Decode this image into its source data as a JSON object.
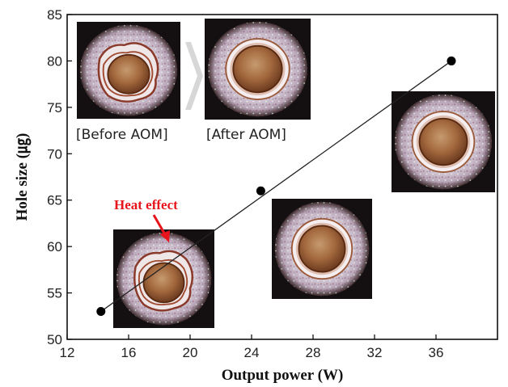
{
  "chart_data": {
    "type": "scatter",
    "title": "",
    "xlabel": "Output power (W)",
    "ylabel": "Hole size (㎍)",
    "xlim": [
      12,
      40
    ],
    "ylim": [
      50,
      85
    ],
    "xticks": [
      12,
      16,
      20,
      24,
      28,
      32,
      36
    ],
    "yticks": [
      50,
      55,
      60,
      65,
      70,
      75,
      80,
      85
    ],
    "grid": false,
    "legend": "none",
    "series": [
      {
        "points": [
          {
            "x": 14.2,
            "y": 53
          },
          {
            "x": 24.6,
            "y": 66
          },
          {
            "x": 37.0,
            "y": 80
          }
        ]
      }
    ],
    "fit_line": {
      "from": {
        "x": 14.2,
        "y": 53
      },
      "to": {
        "x": 37.0,
        "y": 80
      }
    },
    "annotations": {
      "before_label": "[Before AOM]",
      "after_label": "[After AOM]",
      "heat_effect": "Heat effect"
    },
    "images": [
      "hole-micrograph-before-aom",
      "hole-micrograph-after-aom",
      "hole-micrograph-14w",
      "hole-micrograph-24w",
      "hole-micrograph-37w"
    ]
  }
}
